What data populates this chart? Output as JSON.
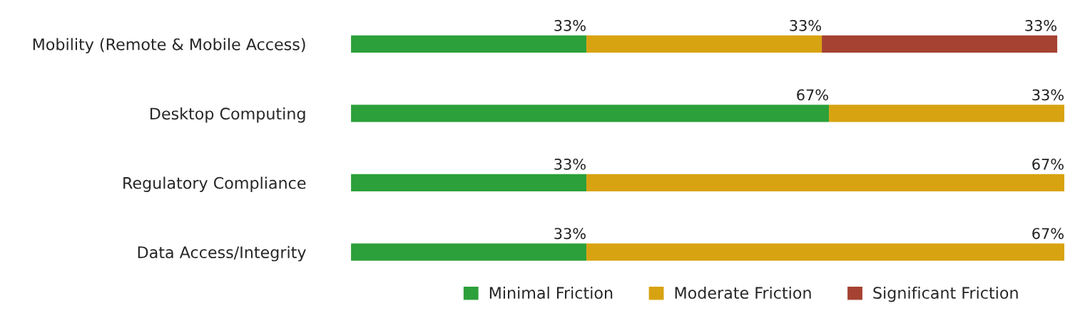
{
  "chart_data": {
    "type": "bar",
    "orientation": "horizontal",
    "stacked": true,
    "categories": [
      "Mobility (Remote & Mobile Access)",
      "Desktop Computing",
      "Regulatory Compliance",
      "Data Access/Integrity"
    ],
    "series": [
      {
        "name": "Minimal Friction",
        "color": "#2ca03a",
        "values": [
          33,
          67,
          33,
          33
        ],
        "value_labels": [
          "33%",
          "67%",
          "33%",
          "33%"
        ]
      },
      {
        "name": "Moderate Friction",
        "color": "#d8a311",
        "values": [
          33,
          33,
          67,
          67
        ],
        "value_labels": [
          "33%",
          "33%",
          "67%",
          "67%"
        ]
      },
      {
        "name": "Significant Friction",
        "color": "#a54232",
        "values": [
          33,
          null,
          null,
          null
        ],
        "value_labels": [
          "33%",
          null,
          null,
          null
        ]
      }
    ],
    "tick_labels": "y",
    "grid": false,
    "legend": "bottom"
  }
}
